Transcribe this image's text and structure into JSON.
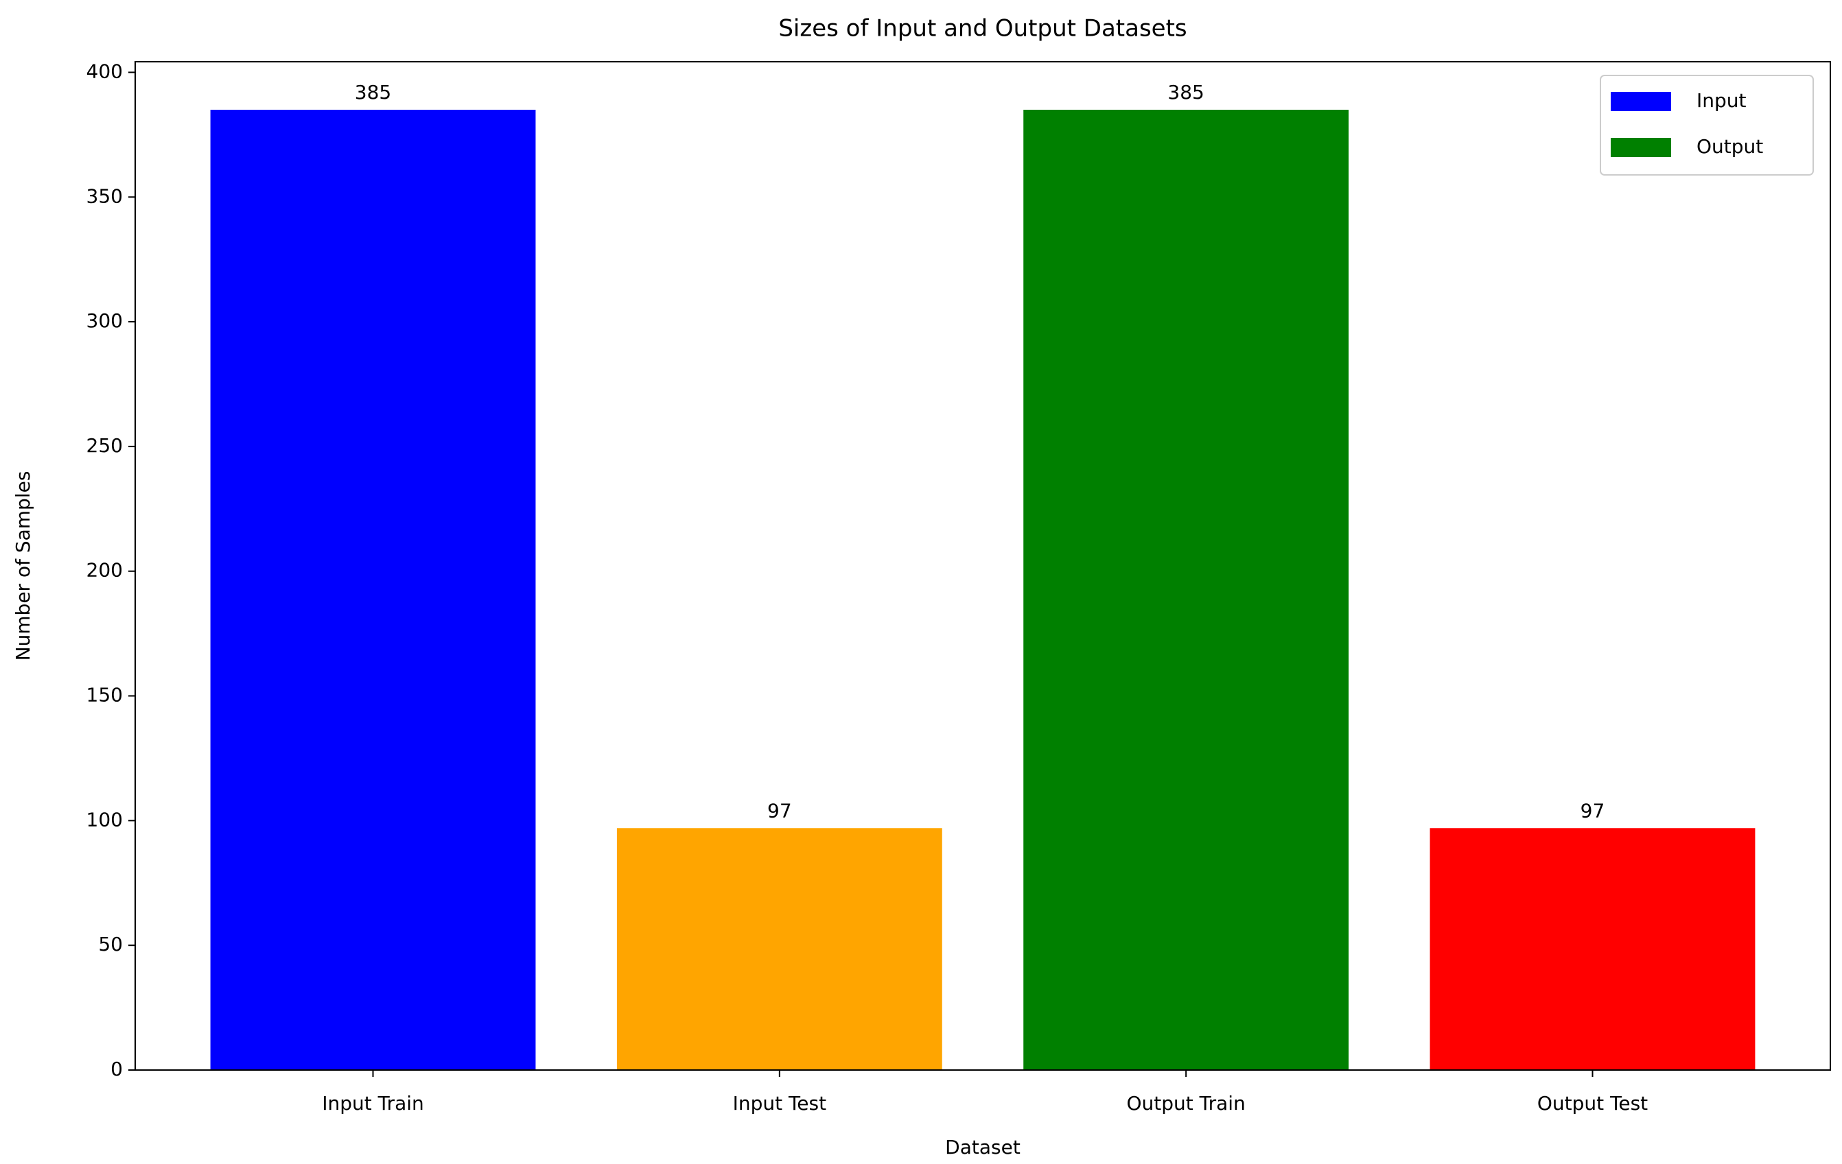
{
  "chart_data": {
    "type": "bar",
    "title": "Sizes of Input and Output Datasets",
    "x_label": "Dataset",
    "y_label": "Number of Samples",
    "categories": [
      "Input Train",
      "Input Test",
      "Output Train",
      "Output Test"
    ],
    "values": [
      385,
      97,
      385,
      97
    ],
    "colors": [
      "blue",
      "orange",
      "green",
      "red"
    ],
    "ylim": [
      0,
      404.25
    ],
    "yticks": [
      0,
      50,
      100,
      150,
      200,
      250,
      300,
      350,
      400
    ],
    "grid": false,
    "legend": [
      {
        "name": "Input",
        "color": "blue"
      },
      {
        "name": "Output",
        "color": "green"
      }
    ],
    "legend_position": "upper right"
  }
}
